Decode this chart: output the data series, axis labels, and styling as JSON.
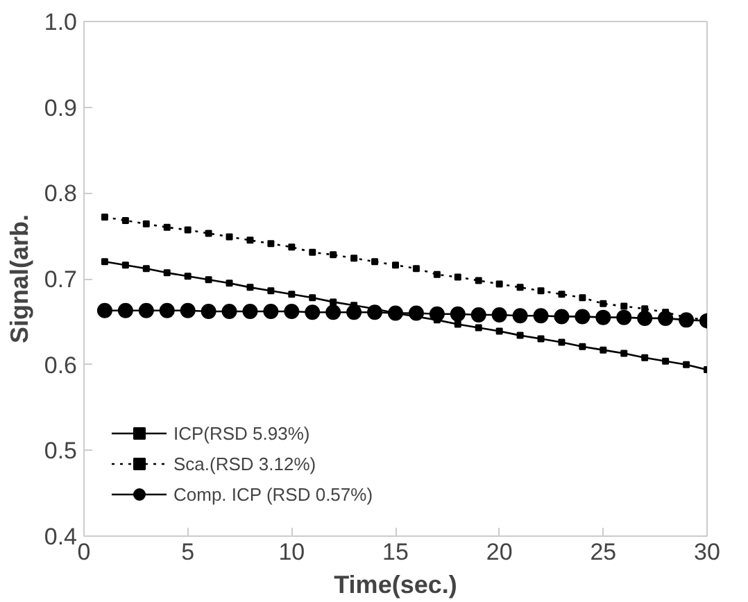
{
  "chart_data": {
    "type": "line",
    "xlabel": "Time(sec.)",
    "ylabel": "Signal(arb.",
    "xlim": [
      0,
      30
    ],
    "ylim": [
      0.4,
      1.0
    ],
    "xticks": [
      0,
      5,
      10,
      15,
      20,
      25,
      30
    ],
    "yticks": [
      {
        "value": 0.4,
        "label": "0.4"
      },
      {
        "value": 0.5,
        "label": "0.5"
      },
      {
        "value": 0.6,
        "label": "0.6"
      },
      {
        "value": 0.7,
        "label": "0.7"
      },
      {
        "value": 0.8,
        "label": "0.8"
      },
      {
        "value": 0.9,
        "label": "0.9"
      },
      {
        "value": 1.0,
        "label": "1.0"
      }
    ],
    "grid": false,
    "legend": "bottom left",
    "x": [
      1,
      2,
      3,
      4,
      5,
      6,
      7,
      8,
      9,
      10,
      11,
      12,
      13,
      14,
      15,
      16,
      17,
      18,
      19,
      20,
      21,
      22,
      23,
      24,
      25,
      26,
      27,
      28,
      29,
      30
    ],
    "series": [
      {
        "name": "ICP(RSD 5.93%)",
        "color": "#000000",
        "marker": "square",
        "line_style": "solid",
        "values": [
          0.72,
          0.716,
          0.712,
          0.707,
          0.703,
          0.699,
          0.695,
          0.69,
          0.686,
          0.682,
          0.678,
          0.673,
          0.669,
          0.665,
          0.66,
          0.656,
          0.652,
          0.647,
          0.643,
          0.639,
          0.634,
          0.63,
          0.626,
          0.621,
          0.617,
          0.613,
          0.608,
          0.604,
          0.6,
          0.594
        ]
      },
      {
        "name": "Sca.(RSD 3.12%)",
        "color": "#000000",
        "marker": "square",
        "line_style": "dotted",
        "values": [
          0.772,
          0.768,
          0.764,
          0.76,
          0.757,
          0.753,
          0.749,
          0.745,
          0.741,
          0.737,
          0.731,
          0.728,
          0.724,
          0.72,
          0.716,
          0.712,
          0.705,
          0.702,
          0.698,
          0.694,
          0.69,
          0.686,
          0.682,
          0.678,
          0.671,
          0.668,
          0.665,
          0.661,
          0.655,
          0.652
        ]
      },
      {
        "name": "Comp. ICP (RSD 0.57%)",
        "color": "#000000",
        "marker": "circle",
        "line_style": "solid",
        "values": [
          0.663,
          0.663,
          0.663,
          0.663,
          0.663,
          0.662,
          0.662,
          0.662,
          0.662,
          0.662,
          0.661,
          0.661,
          0.661,
          0.661,
          0.66,
          0.66,
          0.659,
          0.659,
          0.658,
          0.658,
          0.657,
          0.657,
          0.656,
          0.656,
          0.655,
          0.655,
          0.654,
          0.654,
          0.652,
          0.651
        ]
      }
    ]
  }
}
